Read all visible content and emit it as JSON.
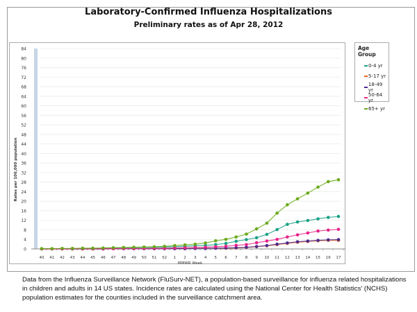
{
  "chart_data": {
    "type": "line",
    "title": "Laboratory-Confirmed Influenza Hospitalizations",
    "subtitle": "Preliminary rates as of Apr 28, 2012",
    "xlabel": "MMWR Week",
    "ylabel": "Rates per 100,000 population",
    "ylim": [
      0,
      84
    ],
    "yticks": [
      0,
      4,
      8,
      12,
      16,
      20,
      24,
      28,
      32,
      36,
      40,
      44,
      48,
      52,
      56,
      60,
      64,
      68,
      72,
      76,
      80,
      84
    ],
    "categories": [
      "40",
      "41",
      "42",
      "43",
      "44",
      "45",
      "46",
      "47",
      "48",
      "49",
      "50",
      "51",
      "52",
      "1",
      "2",
      "3",
      "4",
      "5",
      "6",
      "7",
      "8",
      "9",
      "10",
      "11",
      "12",
      "13",
      "14",
      "15",
      "16",
      "17"
    ],
    "grid": true,
    "legend_title": "Age Group",
    "legend_position": "right",
    "series": [
      {
        "name": "0-4 yr",
        "color": "#1aa187",
        "values": [
          0.1,
          0.1,
          0.1,
          0.1,
          0.2,
          0.2,
          0.3,
          0.4,
          0.5,
          0.5,
          0.6,
          0.7,
          0.8,
          0.9,
          1.1,
          1.3,
          1.5,
          1.8,
          2.3,
          3.2,
          3.9,
          4.7,
          6.1,
          8.1,
          10.3,
          11.3,
          11.9,
          12.6,
          13.2,
          13.6
        ]
      },
      {
        "name": "5-17 yr",
        "color": "#e8621a",
        "values": [
          0,
          0,
          0,
          0,
          0,
          0,
          0,
          0.1,
          0.1,
          0.1,
          0.1,
          0.1,
          0.1,
          0.1,
          0.1,
          0.2,
          0.2,
          0.3,
          0.3,
          0.4,
          0.6,
          0.9,
          1.3,
          1.8,
          2.3,
          2.8,
          3.1,
          3.4,
          3.6,
          3.6
        ]
      },
      {
        "name": "18-49 yr",
        "color": "#4b2a8f",
        "values": [
          0,
          0,
          0,
          0,
          0,
          0,
          0,
          0.1,
          0.1,
          0.1,
          0.1,
          0.1,
          0.1,
          0.1,
          0.1,
          0.2,
          0.2,
          0.3,
          0.4,
          0.5,
          0.7,
          1.0,
          1.4,
          2.0,
          2.5,
          3.0,
          3.3,
          3.6,
          3.8,
          3.9
        ]
      },
      {
        "name": "50-64 yr",
        "color": "#e8228a",
        "values": [
          0,
          0,
          0,
          0.1,
          0.1,
          0.1,
          0.1,
          0.1,
          0.2,
          0.2,
          0.2,
          0.3,
          0.3,
          0.4,
          0.5,
          0.6,
          0.7,
          0.9,
          1.1,
          1.5,
          1.8,
          2.6,
          3.3,
          4.0,
          5.0,
          5.9,
          6.7,
          7.5,
          7.9,
          8.2
        ]
      },
      {
        "name": "65+ yr",
        "color": "#6aaa1a",
        "values": [
          0.1,
          0.1,
          0.2,
          0.2,
          0.3,
          0.3,
          0.4,
          0.5,
          0.6,
          0.7,
          0.8,
          0.9,
          1.1,
          1.4,
          1.7,
          2.0,
          2.5,
          3.4,
          4.0,
          5.0,
          6.2,
          8.4,
          10.8,
          15.0,
          18.5,
          21.0,
          23.4,
          25.9,
          28.2,
          29.0
        ]
      }
    ]
  },
  "footer": "Data from the Influenza  Surveillance  Network (FluSurv-NET),  a population-based surveillance  for influenza  related hospitalizations in children and adults in 14 US states.  Incidence rates are calculated using the National Center for Health Statistics' (NCHS) population estimates for the counties included in the surveillance  catchment  area."
}
